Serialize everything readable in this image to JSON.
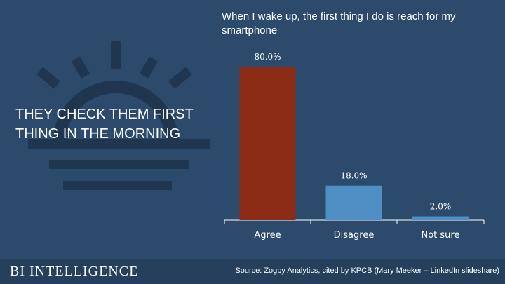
{
  "headline": "THEY CHECK THEM FIRST THING IN THE MORNING",
  "footer": {
    "brand": "BI INTELLIGENCE",
    "source": "Source: Zogby Analytics, cited by KPCB (Mary Meeker – LinkedIn slideshare)"
  },
  "colors": {
    "background": "#2c4a6b",
    "footer": "#263f5c",
    "bar_highlight": "#8b2b16",
    "bar_default": "#4f8fc4",
    "decoration": "#1f3550"
  },
  "icons": {
    "decoration": "rising-sun-icon"
  },
  "chart_data": {
    "type": "bar",
    "title": "When I wake up, the first thing I do is reach for my smartphone",
    "categories": [
      "Agree",
      "Disagree",
      "Not sure"
    ],
    "values": [
      80.0,
      18.0,
      2.0
    ],
    "value_labels": [
      "80.0%",
      "18.0%",
      "2.0%"
    ],
    "xlabel": "",
    "ylabel": "",
    "ylim": [
      0,
      80
    ],
    "grid": false,
    "legend": "none"
  }
}
